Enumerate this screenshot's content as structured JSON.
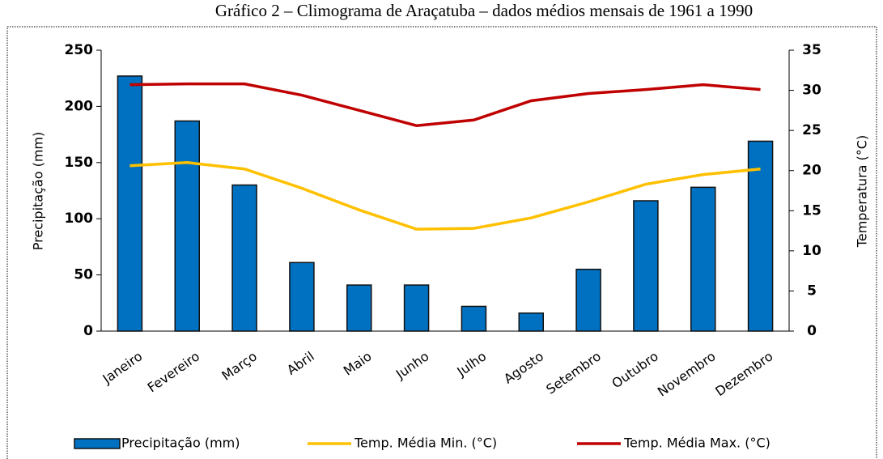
{
  "chart_data": {
    "type": "bar",
    "title": "Gráfico 2 – Climograma de Araçatuba – dados médios mensais de 1961 a 1990",
    "y_label": "Precipitação (mm)",
    "y2_label": "Temperatura (°C)",
    "categories": [
      "Janeiro",
      "Fevereiro",
      "Março",
      "Abril",
      "Maio",
      "Junho",
      "Julho",
      "Agosto",
      "Setembro",
      "Outubro",
      "Novembro",
      "Dezembro"
    ],
    "series": [
      {
        "name": "Precipitação (mm)",
        "type": "bar",
        "color": "#0070c0",
        "values": [
          227,
          187,
          130,
          61,
          41,
          41,
          22,
          16,
          55,
          116,
          128,
          169
        ]
      },
      {
        "name": "Temp. Média Min. (°C)",
        "type": "line",
        "axis": "y2",
        "color": "#ffc000",
        "values": [
          20.6,
          21.0,
          20.2,
          17.8,
          15.1,
          12.7,
          12.8,
          14.1,
          16.1,
          18.3,
          19.5,
          20.2
        ]
      },
      {
        "name": "Temp. Média Max. (°C)",
        "type": "line",
        "axis": "y2",
        "color": "#c00000",
        "values": [
          30.7,
          30.8,
          30.8,
          29.4,
          27.5,
          25.6,
          26.3,
          28.7,
          29.6,
          30.1,
          30.7,
          30.1
        ]
      }
    ],
    "ylim": [
      0,
      250
    ],
    "yticks": [
      0,
      50,
      100,
      150,
      200,
      250
    ],
    "y2lim": [
      0,
      35
    ],
    "y2ticks": [
      0,
      5,
      10,
      15,
      20,
      25,
      30,
      35
    ],
    "legend": "bottom"
  }
}
